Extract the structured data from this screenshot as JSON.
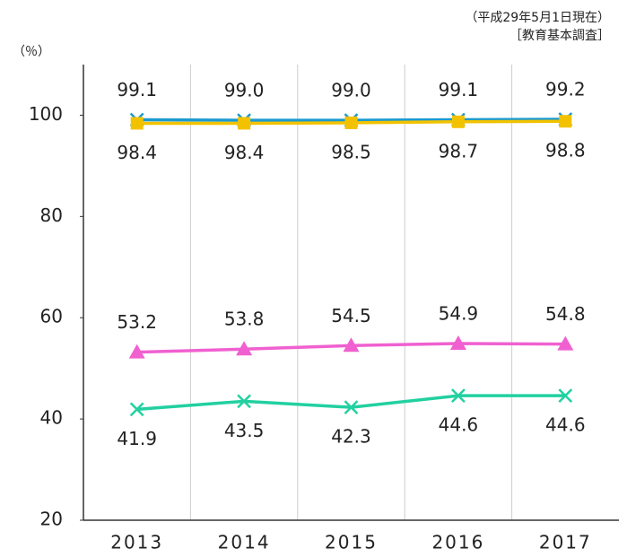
{
  "chart_data": {
    "type": "line",
    "annotations": [
      "（平成29年5月1日現在）",
      "［教育基本調査］"
    ],
    "y_label": "（％）",
    "categories": [
      "2013",
      "2014",
      "2015",
      "2016",
      "2017"
    ],
    "series": [
      {
        "color": "#1a9ad0",
        "marker": "x",
        "label_position": "above",
        "values": [
          99.1,
          99.0,
          99.0,
          99.1,
          99.2
        ],
        "value_labels": [
          "99.1",
          "99.0",
          "99.0",
          "99.1",
          "99.2"
        ]
      },
      {
        "color": "#f2c200",
        "marker": "square",
        "label_position": "below",
        "values": [
          98.4,
          98.4,
          98.5,
          98.7,
          98.8
        ]
      },
      {
        "color": "#f060d0",
        "marker": "triangle",
        "label_position": "above",
        "values": [
          53.2,
          53.8,
          54.5,
          54.9,
          54.8
        ]
      },
      {
        "color": "#22d0a0",
        "marker": "x",
        "label_position": "below",
        "values": [
          41.9,
          43.5,
          42.3,
          44.6,
          44.6
        ]
      }
    ],
    "ylim": [
      20,
      110
    ],
    "yticks": [
      20,
      40,
      60,
      80,
      100
    ],
    "vertical_grid": true
  }
}
